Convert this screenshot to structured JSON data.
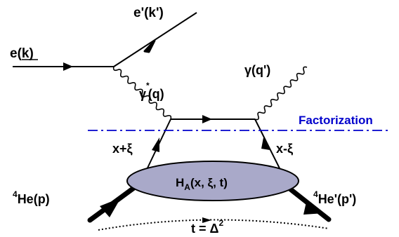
{
  "labels": {
    "electron_in": "e(k)",
    "electron_out": "e'(k')",
    "virtual_photon": {
      "symbol": "γ",
      "sup": "*",
      "momentum": "(q)"
    },
    "real_photon": {
      "symbol": "γ",
      "momentum": "(q')"
    },
    "factorization": "Factorization",
    "left_parton": "x+ξ",
    "right_parton": "x-ξ",
    "blob": {
      "H": "H",
      "sub": "A",
      "args": "(x,  ξ, t)"
    },
    "target_in": {
      "sup": "4",
      "text": "He(p)"
    },
    "target_out": {
      "sup": "4",
      "text": "He'(p')"
    },
    "momentum_transfer": {
      "lhs": "t = Δ",
      "sup": "2"
    }
  },
  "colors": {
    "lines": "#000000",
    "factorization": "#0000cc",
    "blob_fill": "#a9a9c9",
    "blob_stroke": "#000000"
  }
}
